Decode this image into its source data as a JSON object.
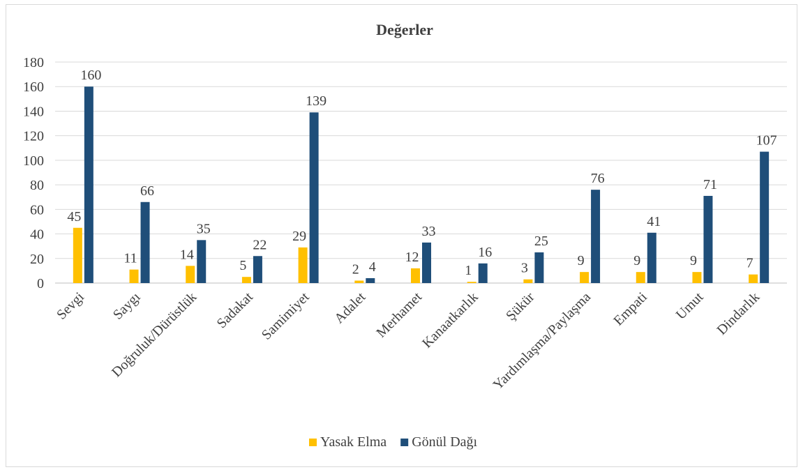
{
  "chart_data": {
    "type": "bar",
    "title": "Değerler",
    "xlabel": "",
    "ylabel": "",
    "ylim": [
      0,
      180
    ],
    "yticks": [
      0,
      20,
      40,
      60,
      80,
      100,
      120,
      140,
      160,
      180
    ],
    "grid": true,
    "legend_position": "bottom",
    "categories": [
      "Sevgi",
      "Saygı",
      "Doğruluk/Dürüstlük",
      "Sadakat",
      "Samimiyet",
      "Adalet",
      "Merhamet",
      "Kanaatkarlık",
      "Şükür",
      "Yardımlaşma/Paylaşma",
      "Empati",
      "Umut",
      "Dindarlık"
    ],
    "series": [
      {
        "name": "Yasak Elma",
        "color": "#ffc000",
        "values": [
          45,
          11,
          14,
          5,
          29,
          2,
          12,
          1,
          3,
          9,
          9,
          9,
          7
        ]
      },
      {
        "name": "Gönül Dağı",
        "color": "#1f4e79",
        "values": [
          160,
          66,
          35,
          22,
          139,
          4,
          33,
          16,
          25,
          76,
          41,
          71,
          107
        ]
      }
    ]
  }
}
